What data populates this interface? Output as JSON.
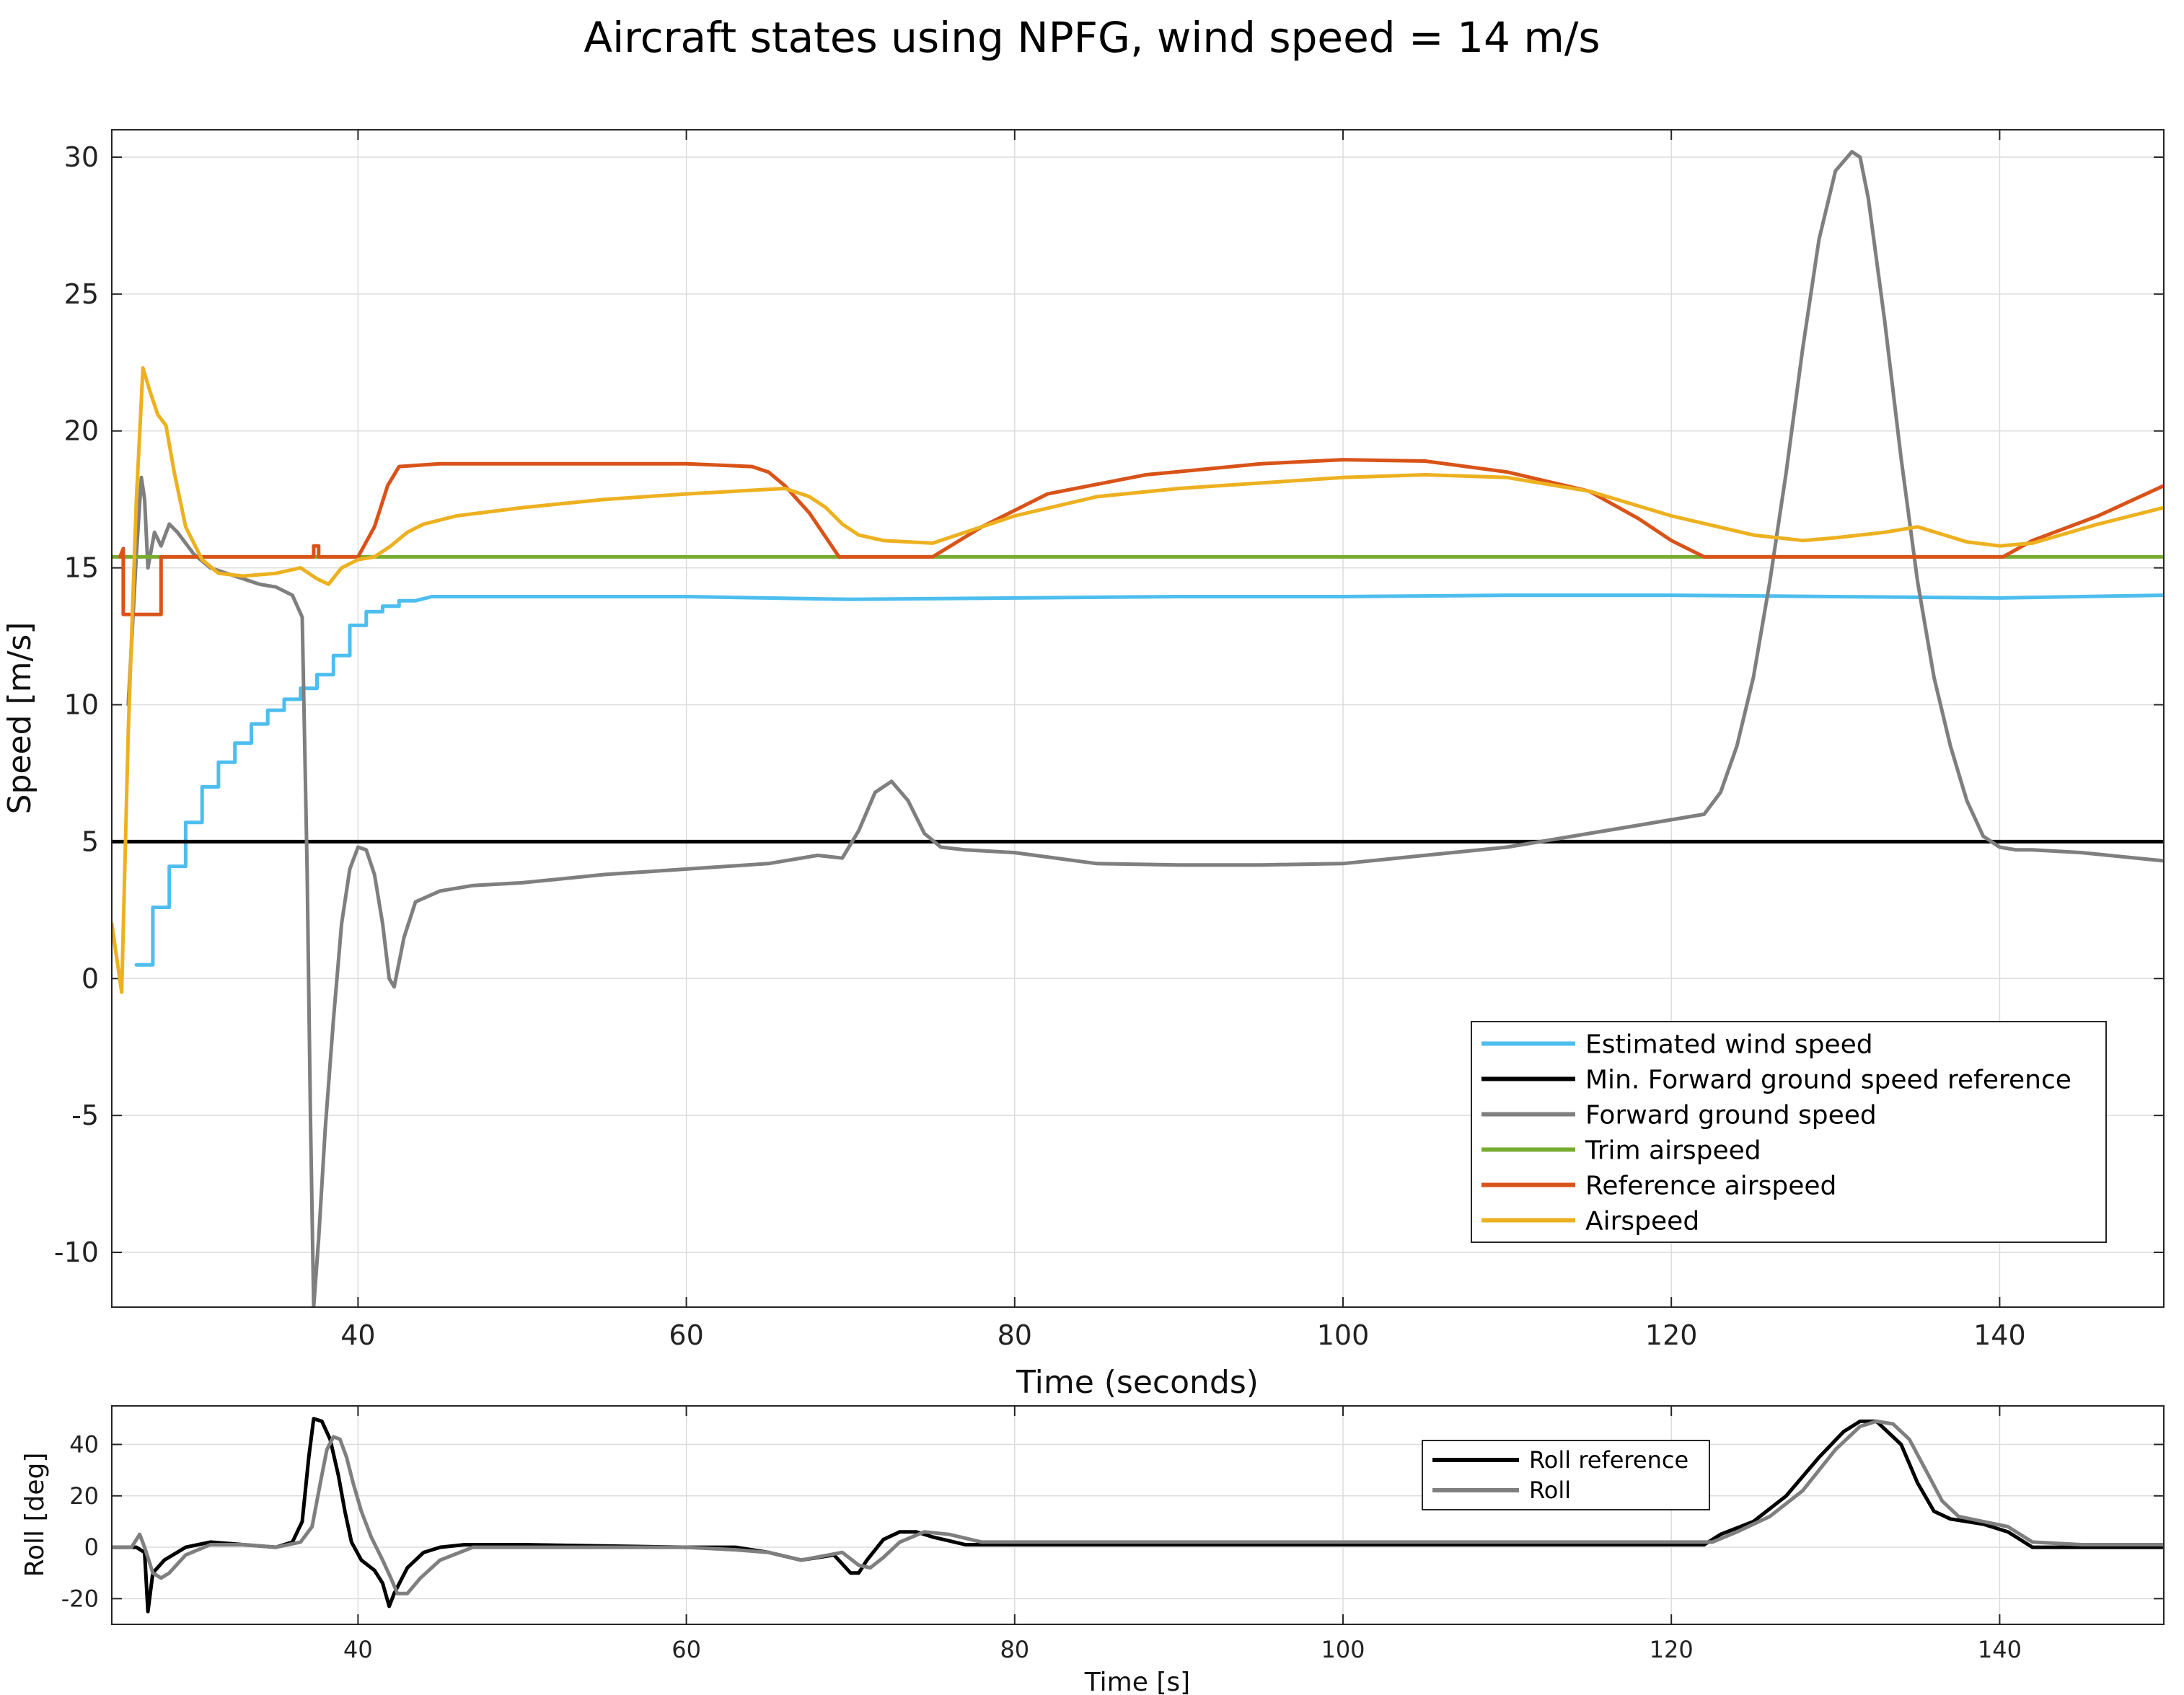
{
  "title": "Aircraft states using NPFG, wind speed = 14 m/s",
  "chart_data": [
    {
      "type": "line",
      "title": "Aircraft states using NPFG, wind speed = 14 m/s",
      "xlabel": "Time (seconds)",
      "ylabel": "Speed [m/s]",
      "xlim": [
        25,
        150
      ],
      "ylim": [
        -12,
        31
      ],
      "xticks": [
        40,
        60,
        80,
        100,
        120,
        140
      ],
      "yticks": [
        30,
        25,
        20,
        15,
        10,
        5,
        0,
        -5,
        -10
      ],
      "grid": true,
      "legend_position": "bottom-right",
      "series": [
        {
          "name": "Estimated wind speed",
          "color": "#4DBEEE",
          "x": [
            26.5,
            27.5,
            27.5,
            28.5,
            28.5,
            29.5,
            29.5,
            30.5,
            30.5,
            31.5,
            31.5,
            32.5,
            32.5,
            33.5,
            33.5,
            34.5,
            34.5,
            35.5,
            35.5,
            36.5,
            36.5,
            37.5,
            37.5,
            38.5,
            38.5,
            39.5,
            39.5,
            40.5,
            40.5,
            41.5,
            41.5,
            42.5,
            42.5,
            43.5,
            44.5,
            50,
            60,
            70,
            80,
            90,
            100,
            110,
            120,
            130,
            140,
            150
          ],
          "y": [
            0.5,
            0.5,
            2.6,
            2.6,
            4.1,
            4.1,
            5.7,
            5.7,
            7.0,
            7.0,
            7.9,
            7.9,
            8.6,
            8.6,
            9.3,
            9.3,
            9.8,
            9.8,
            10.2,
            10.2,
            10.6,
            10.6,
            11.1,
            11.1,
            11.8,
            11.8,
            12.9,
            12.9,
            13.4,
            13.4,
            13.6,
            13.6,
            13.8,
            13.8,
            13.95,
            13.95,
            13.95,
            13.85,
            13.9,
            13.95,
            13.95,
            14.0,
            14.0,
            13.95,
            13.9,
            14.0
          ]
        },
        {
          "name": "Min. Forward ground speed reference",
          "color": "#000000",
          "x": [
            25,
            150
          ],
          "y": [
            5,
            5
          ]
        },
        {
          "name": "Forward ground speed",
          "color": "#7F7F7F",
          "x": [
            26.0,
            26.5,
            26.8,
            27.0,
            27.2,
            27.6,
            28.0,
            28.5,
            29.0,
            30.0,
            31.0,
            32.0,
            33.0,
            34.0,
            35.0,
            36.0,
            36.6,
            36.9,
            37.1,
            37.3,
            37.6,
            38.0,
            38.5,
            39.0,
            39.5,
            40.0,
            40.5,
            41.0,
            41.5,
            41.9,
            42.2,
            42.8,
            43.5,
            45,
            47,
            50,
            55,
            60,
            65,
            68,
            69.5,
            70.5,
            71.5,
            72.5,
            73.5,
            74.5,
            75.5,
            77,
            80,
            85,
            90,
            95,
            100,
            105,
            110,
            115,
            120,
            122,
            123,
            124,
            125,
            126,
            127,
            128,
            129,
            130,
            131,
            131.5,
            132,
            133,
            134,
            135,
            136,
            137,
            138,
            139,
            140,
            141,
            142,
            145,
            150
          ],
          "y": [
            10.0,
            15.5,
            18.3,
            17.5,
            15.0,
            16.3,
            15.8,
            16.6,
            16.3,
            15.5,
            15.0,
            14.8,
            14.6,
            14.4,
            14.3,
            14.0,
            13.2,
            4.0,
            -5.0,
            -12.0,
            -9.5,
            -5.5,
            -1.5,
            2.0,
            4.0,
            4.8,
            4.7,
            3.8,
            2.0,
            0.0,
            -0.3,
            1.5,
            2.8,
            3.2,
            3.4,
            3.5,
            3.8,
            4.0,
            4.2,
            4.5,
            4.4,
            5.4,
            6.8,
            7.2,
            6.5,
            5.3,
            4.8,
            4.7,
            4.6,
            4.2,
            4.15,
            4.15,
            4.2,
            4.5,
            4.8,
            5.3,
            5.8,
            6.0,
            6.8,
            8.5,
            11.0,
            14.5,
            18.5,
            23.0,
            27.0,
            29.5,
            30.2,
            30.0,
            28.5,
            24.0,
            19.0,
            14.5,
            11.0,
            8.5,
            6.5,
            5.2,
            4.8,
            4.7,
            4.7,
            4.6,
            4.3
          ]
        },
        {
          "name": "Trim airspeed",
          "color": "#77AC30",
          "x": [
            25,
            150
          ],
          "y": [
            15.4,
            15.4
          ]
        },
        {
          "name": "Reference airspeed",
          "color": "#D95319",
          "x": [
            25.5,
            25.7,
            25.7,
            28.0,
            28.0,
            37.3,
            37.3,
            37.6,
            37.6,
            40.0,
            41.0,
            41.8,
            42.5,
            45,
            50,
            60,
            64,
            65,
            66,
            67.5,
            69.3,
            75,
            78,
            82,
            88,
            95,
            100,
            105,
            110,
            115,
            118,
            120,
            122,
            140.2,
            142,
            146,
            150
          ],
          "y": [
            15.4,
            15.7,
            13.3,
            13.3,
            15.4,
            15.4,
            15.8,
            15.8,
            15.4,
            15.4,
            16.5,
            18.0,
            18.7,
            18.8,
            18.8,
            18.8,
            18.7,
            18.5,
            18.0,
            17.0,
            15.4,
            15.4,
            16.5,
            17.7,
            18.4,
            18.8,
            18.95,
            18.9,
            18.5,
            17.8,
            16.8,
            16.0,
            15.4,
            15.4,
            16.0,
            16.9,
            18.0
          ]
        },
        {
          "name": "Airspeed",
          "color": "#EDB120",
          "x": [
            25.0,
            25.6,
            26.0,
            26.5,
            26.9,
            27.3,
            27.8,
            28.3,
            28.8,
            29.5,
            30.5,
            31.5,
            33,
            35,
            36.5,
            37.5,
            38.2,
            39,
            40,
            41,
            42,
            43,
            44,
            46,
            50,
            55,
            60,
            63,
            66,
            67.5,
            68.5,
            69.5,
            70.5,
            72,
            75,
            80,
            85,
            90,
            95,
            100,
            105,
            110,
            115,
            120,
            125,
            128,
            130,
            133,
            135,
            138,
            140,
            142,
            146,
            150
          ],
          "y": [
            2.0,
            -0.5,
            9.0,
            17.5,
            22.3,
            21.5,
            20.6,
            20.2,
            18.5,
            16.5,
            15.3,
            14.8,
            14.7,
            14.8,
            15.0,
            14.6,
            14.4,
            15.0,
            15.3,
            15.4,
            15.8,
            16.3,
            16.6,
            16.9,
            17.2,
            17.5,
            17.7,
            17.8,
            17.9,
            17.6,
            17.2,
            16.6,
            16.2,
            16.0,
            15.9,
            16.9,
            17.6,
            17.9,
            18.1,
            18.3,
            18.4,
            18.3,
            17.8,
            16.9,
            16.2,
            16.0,
            16.1,
            16.3,
            16.5,
            15.95,
            15.8,
            15.9,
            16.6,
            17.2
          ]
        }
      ]
    },
    {
      "type": "line",
      "xlabel": "Time [s]",
      "ylabel": "Roll [deg]",
      "xlim": [
        25,
        150
      ],
      "ylim": [
        -30,
        55
      ],
      "xticks": [
        40,
        60,
        80,
        100,
        120,
        140
      ],
      "yticks": [
        40,
        20,
        0,
        -20
      ],
      "grid": true,
      "legend_position": "top-center",
      "series": [
        {
          "name": "Roll reference",
          "color": "#000000",
          "x": [
            25,
            26.5,
            27.0,
            27.2,
            27.5,
            28.2,
            29.5,
            31,
            33,
            35.0,
            36.0,
            36.6,
            37.0,
            37.3,
            37.8,
            38.3,
            38.8,
            39.2,
            39.6,
            40.2,
            41.0,
            41.5,
            41.9,
            42.2,
            43,
            44,
            45,
            46.5,
            50,
            60,
            63,
            65,
            67,
            69,
            70.0,
            70.5,
            71,
            72,
            73,
            74,
            75,
            77,
            80,
            90,
            100,
            110,
            120,
            122,
            123,
            125,
            127,
            129,
            130.5,
            131.5,
            132.5,
            134,
            135,
            136,
            137,
            138,
            139,
            140.5,
            142,
            150
          ],
          "y": [
            0,
            0,
            -2,
            -25,
            -10,
            -5,
            0,
            2,
            1,
            0,
            2,
            10,
            35,
            50,
            49,
            42,
            28,
            14,
            2,
            -5,
            -9,
            -14,
            -23,
            -18,
            -8,
            -2,
            0,
            1,
            1,
            0,
            0,
            -2,
            -5,
            -3,
            -10,
            -10,
            -5,
            3,
            6,
            6,
            4,
            1,
            1,
            1,
            1,
            1,
            1,
            1,
            5,
            10,
            20,
            35,
            45,
            49,
            49,
            40,
            25,
            14,
            11,
            10,
            9,
            6,
            0,
            0
          ]
        },
        {
          "name": "Roll",
          "color": "#7F7F7F",
          "x": [
            25,
            26.2,
            26.7,
            27.0,
            27.5,
            28.0,
            28.5,
            29.5,
            31,
            33,
            35,
            36.5,
            37.2,
            37.7,
            38.1,
            38.5,
            38.9,
            39.3,
            39.7,
            40.2,
            40.8,
            41.5,
            42.0,
            42.4,
            43.0,
            43.8,
            45,
            47,
            50,
            60,
            63,
            65,
            67,
            69.5,
            70.5,
            71.2,
            72,
            73,
            74.5,
            76,
            78,
            82,
            90,
            100,
            110,
            120,
            122.5,
            124,
            126,
            128,
            130,
            131.5,
            132.5,
            133.5,
            134.5,
            135.5,
            136.5,
            137.5,
            139,
            140.5,
            142,
            145,
            150
          ],
          "y": [
            0,
            0,
            5,
            0,
            -10,
            -12,
            -10,
            -3,
            1,
            1,
            0,
            2,
            8,
            25,
            38,
            43,
            42,
            35,
            25,
            14,
            4,
            -5,
            -12,
            -18,
            -18,
            -12,
            -5,
            0,
            0,
            0,
            -1,
            -2,
            -5,
            -2,
            -7,
            -8,
            -4,
            2,
            6,
            5,
            2,
            2,
            2,
            2,
            2,
            2,
            2,
            6,
            12,
            22,
            38,
            47,
            49,
            48,
            42,
            30,
            18,
            12,
            10,
            8,
            2,
            1,
            1
          ]
        }
      ]
    }
  ]
}
